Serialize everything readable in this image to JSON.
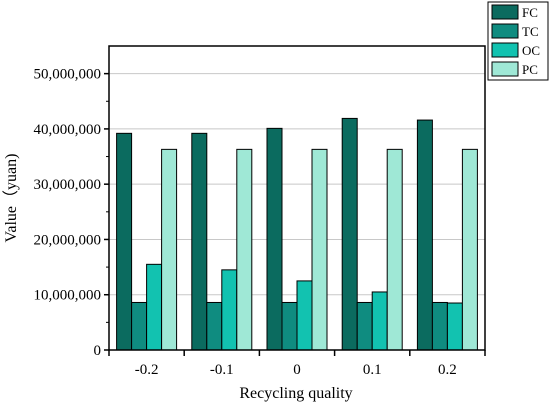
{
  "chart_data": {
    "type": "bar",
    "xlabel": "Recycling quality",
    "ylabel": "Value（yuan)",
    "categories": [
      "-0.2",
      "-0.1",
      "0",
      "0.1",
      "0.2"
    ],
    "ylim": [
      0,
      55000000
    ],
    "yticks": [
      0,
      10000000,
      20000000,
      30000000,
      40000000,
      50000000
    ],
    "ytick_labels": [
      "0",
      "10,000,000",
      "20,000,000",
      "30,000,000",
      "40,000,000",
      "50,000,000"
    ],
    "grid": true,
    "legend_position": "top-right",
    "series": [
      {
        "name": "FC",
        "color": "#0b6b5f",
        "values": [
          39200000,
          39200000,
          40100000,
          41900000,
          41600000
        ]
      },
      {
        "name": "TC",
        "color": "#0f8c80",
        "values": [
          8600000,
          8600000,
          8600000,
          8600000,
          8600000
        ]
      },
      {
        "name": "OC",
        "color": "#12c2b0",
        "values": [
          15500000,
          14500000,
          12500000,
          10500000,
          8500000
        ]
      },
      {
        "name": "PC",
        "color": "#9fe8d6",
        "values": [
          36300000,
          36300000,
          36300000,
          36300000,
          36300000
        ]
      }
    ]
  }
}
